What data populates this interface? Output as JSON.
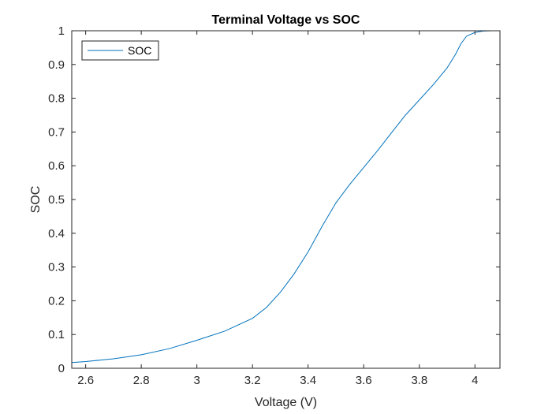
{
  "chart_data": {
    "type": "line",
    "title": "Terminal Voltage vs SOC",
    "xlabel": "Voltage (V)",
    "ylabel": "SOC",
    "xlim": [
      2.55,
      4.09
    ],
    "ylim": [
      0,
      1
    ],
    "xticks": [
      2.6,
      2.8,
      3,
      3.2,
      3.4,
      3.6,
      3.8,
      4
    ],
    "xtick_labels": [
      "2.6",
      "2.8",
      "3",
      "3.2",
      "3.4",
      "3.6",
      "3.8",
      "4"
    ],
    "yticks": [
      0,
      0.1,
      0.2,
      0.3,
      0.4,
      0.5,
      0.6,
      0.7,
      0.8,
      0.9,
      1
    ],
    "ytick_labels": [
      "0",
      "0.1",
      "0.2",
      "0.3",
      "0.4",
      "0.5",
      "0.6",
      "0.7",
      "0.8",
      "0.9",
      "1"
    ],
    "grid": false,
    "legend": {
      "placement": "top-left",
      "entries": [
        "SOC"
      ]
    },
    "series": [
      {
        "name": "SOC",
        "color": "#0072BD",
        "x": [
          2.55,
          2.6,
          2.7,
          2.8,
          2.9,
          3.0,
          3.1,
          3.2,
          3.25,
          3.3,
          3.35,
          3.4,
          3.45,
          3.5,
          3.55,
          3.6,
          3.65,
          3.7,
          3.75,
          3.8,
          3.85,
          3.9,
          3.93,
          3.95,
          3.97,
          4.0,
          4.03,
          4.06,
          4.09
        ],
        "y": [
          0.017,
          0.02,
          0.028,
          0.04,
          0.058,
          0.083,
          0.11,
          0.148,
          0.18,
          0.225,
          0.28,
          0.345,
          0.42,
          0.49,
          0.545,
          0.595,
          0.645,
          0.698,
          0.75,
          0.795,
          0.84,
          0.89,
          0.93,
          0.962,
          0.984,
          0.995,
          0.999,
          1.0,
          1.0
        ]
      }
    ]
  }
}
